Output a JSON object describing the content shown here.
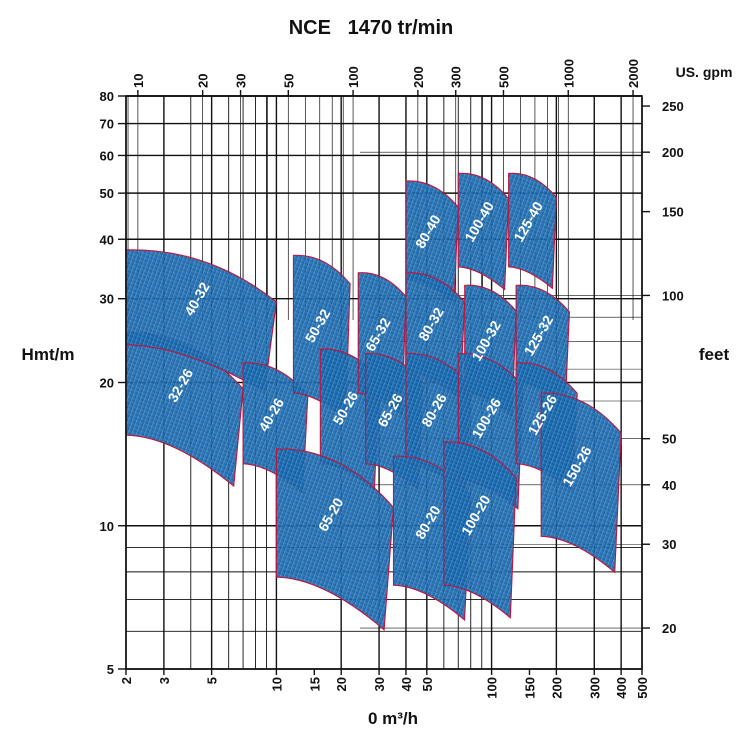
{
  "chart_data": {
    "type": "area",
    "title": "NCE   1470 tr/min",
    "xlabel": "0 m³/h",
    "ylabel": "Hmt/m",
    "x2label": "US. gpm",
    "y2label": "feet",
    "x_scale": "log",
    "y_scale": "log",
    "xlim": [
      2,
      500
    ],
    "ylim": [
      5,
      80
    ],
    "x_ticks": [
      "2",
      "3",
      "5",
      "10",
      "15",
      "20",
      "30",
      "40",
      "50",
      "100",
      "150",
      "200",
      "300",
      "400",
      "500"
    ],
    "x_tick_values": [
      2,
      3,
      5,
      10,
      15,
      20,
      30,
      40,
      50,
      100,
      150,
      200,
      300,
      400,
      500
    ],
    "y_ticks": [
      "5",
      "10",
      "20",
      "30",
      "40",
      "50",
      "60",
      "70",
      "80"
    ],
    "y_tick_values": [
      5,
      10,
      20,
      30,
      40,
      50,
      60,
      70,
      80
    ],
    "x2_ticks": [
      "10",
      "20",
      "30",
      "50",
      "100",
      "200",
      "300",
      "500",
      "1000",
      "2000"
    ],
    "x2_tick_values": [
      10,
      20,
      30,
      50,
      100,
      200,
      300,
      500,
      1000,
      2000
    ],
    "y2_ticks": [
      "20",
      "30",
      "40",
      "50",
      "100",
      "150",
      "200",
      "250"
    ],
    "y2_tick_values": [
      20,
      30,
      40,
      50,
      100,
      150,
      200,
      250
    ],
    "colors": {
      "fill": "#1c6fb4",
      "edge": "#c0143c",
      "hatch": "#8ec4ec",
      "grid": "#111111"
    },
    "series": [
      {
        "name": "32-26",
        "q": [
          2,
          7
        ],
        "h": [
          15.5,
          25.5
        ]
      },
      {
        "name": "40-32",
        "q": [
          2,
          10
        ],
        "h": [
          24,
          38
        ]
      },
      {
        "name": "40-26",
        "q": [
          7,
          14
        ],
        "h": [
          13.5,
          22
        ]
      },
      {
        "name": "50-32",
        "q": [
          12,
          22
        ],
        "h": [
          19,
          37
        ]
      },
      {
        "name": "50-26",
        "q": [
          16,
          30
        ],
        "h": [
          13.5,
          23.5
        ]
      },
      {
        "name": "65-32",
        "q": [
          24,
          40
        ],
        "h": [
          19,
          34
        ]
      },
      {
        "name": "65-26",
        "q": [
          26,
          48
        ],
        "h": [
          13.5,
          23
        ]
      },
      {
        "name": "65-20",
        "q": [
          10,
          35
        ],
        "h": [
          7.8,
          14.5
        ]
      },
      {
        "name": "80-40",
        "q": [
          40,
          70
        ],
        "h": [
          33,
          53
        ]
      },
      {
        "name": "80-32",
        "q": [
          40,
          75
        ],
        "h": [
          21,
          34
        ]
      },
      {
        "name": "80-26",
        "q": [
          40,
          80
        ],
        "h": [
          13.5,
          23
        ]
      },
      {
        "name": "80-20",
        "q": [
          35,
          80
        ],
        "h": [
          7.5,
          14
        ]
      },
      {
        "name": "100-40",
        "q": [
          70,
          120
        ],
        "h": [
          35,
          55
        ]
      },
      {
        "name": "100-32",
        "q": [
          75,
          130
        ],
        "h": [
          19,
          32
        ]
      },
      {
        "name": "100-26",
        "q": [
          70,
          140
        ],
        "h": [
          12.5,
          23
        ]
      },
      {
        "name": "100-20",
        "q": [
          60,
          130
        ],
        "h": [
          7.5,
          15
        ]
      },
      {
        "name": "125-40",
        "q": [
          120,
          200
        ],
        "h": [
          35,
          55
        ]
      },
      {
        "name": "125-32",
        "q": [
          130,
          230
        ],
        "h": [
          20,
          32
        ]
      },
      {
        "name": "125-26",
        "q": [
          130,
          250
        ],
        "h": [
          13.5,
          22
        ]
      },
      {
        "name": "150-26",
        "q": [
          170,
          400
        ],
        "h": [
          9.5,
          19
        ]
      }
    ]
  }
}
